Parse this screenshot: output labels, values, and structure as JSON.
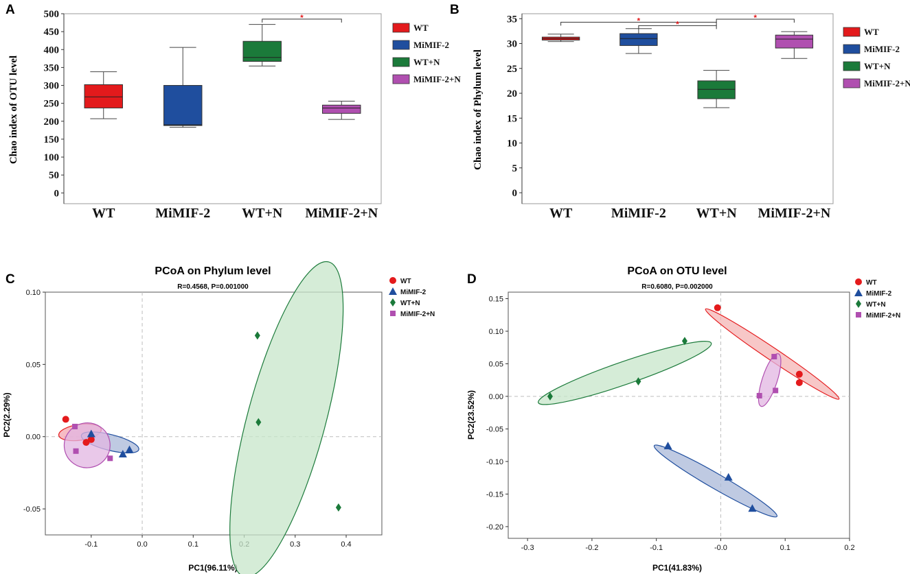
{
  "panels": {
    "A": {
      "label": "A",
      "chart_data": {
        "type": "box",
        "title": "",
        "xlabel": "",
        "ylabel": "Chao index of OTU level",
        "ylim": [
          -30,
          500
        ],
        "yticks": [
          0,
          50,
          100,
          150,
          200,
          250,
          300,
          350,
          400,
          450,
          500
        ],
        "categories": [
          "WT",
          "MiMIF-2",
          "WT+N",
          "MiMIF-2+N"
        ],
        "legend": [
          "WT",
          "MiMIF-2",
          "WT+N",
          "MiMIF-2+N"
        ],
        "colors": [
          "#e31a1c",
          "#1f4e9e",
          "#1b7a3a",
          "#b04fb0"
        ],
        "boxes": [
          {
            "min": 207,
            "q1": 237,
            "median": 268,
            "q3": 302,
            "max": 338
          },
          {
            "min": 183,
            "q1": 188,
            "median": 190,
            "q3": 300,
            "max": 406
          },
          {
            "min": 354,
            "q1": 367,
            "median": 378,
            "q3": 423,
            "max": 470
          },
          {
            "min": 205,
            "q1": 222,
            "median": 237,
            "q3": 245,
            "max": 256
          }
        ],
        "significance": [
          {
            "from": 2,
            "to": 3,
            "level": 485,
            "label": "*"
          }
        ]
      }
    },
    "B": {
      "label": "B",
      "chart_data": {
        "type": "box",
        "title": "",
        "xlabel": "",
        "ylabel": "Chao index of Phylum level",
        "ylim": [
          -2.2,
          36
        ],
        "yticks": [
          0,
          5,
          10,
          15,
          20,
          25,
          30,
          35
        ],
        "categories": [
          "WT",
          "MiMIF-2",
          "WT+N",
          "MiMIF-2+N"
        ],
        "legend": [
          "WT",
          "MiMIF-2",
          "WT+N",
          "MiMIF-2+N"
        ],
        "colors": [
          "#e31a1c",
          "#1f4e9e",
          "#1b7a3a",
          "#b04fb0"
        ],
        "boxes": [
          {
            "min": 30.4,
            "q1": 30.7,
            "median": 31.0,
            "q3": 31.3,
            "max": 31.9
          },
          {
            "min": 28.0,
            "q1": 29.6,
            "median": 31.0,
            "q3": 32.0,
            "max": 33.0
          },
          {
            "min": 17.1,
            "q1": 18.9,
            "median": 20.8,
            "q3": 22.5,
            "max": 24.6
          },
          {
            "min": 27.0,
            "q1": 29.1,
            "median": 30.9,
            "q3": 31.7,
            "max": 32.4
          }
        ],
        "significance": [
          {
            "from": 0,
            "to": 2,
            "level": 34.3,
            "label": "*"
          },
          {
            "from": 1,
            "to": 2,
            "level": 33.6,
            "label": "*"
          },
          {
            "from": 2,
            "to": 3,
            "level": 34.9,
            "label": "*"
          }
        ]
      }
    },
    "C": {
      "label": "C",
      "chart_data": {
        "type": "scatter",
        "title": "PCoA on Phylum level",
        "subtitle": "R=0.4568, P=0.001000",
        "xlabel": "PC1(96.11%)",
        "ylabel": "PC2(2.29%)",
        "xlim": [
          -0.19,
          0.47
        ],
        "ylim": [
          -0.068,
          0.1
        ],
        "xticks": [
          -0.1,
          0.0,
          0.1,
          0.2,
          0.3,
          0.4
        ],
        "xtick_labels": [
          "-0.1",
          "0.0",
          "0.1",
          "0.2",
          "0.3",
          "0.4"
        ],
        "yticks": [
          -0.05,
          0.0,
          0.05,
          0.1
        ],
        "ytick_labels": [
          "-0.05",
          "0.00",
          "0.05",
          "0.10"
        ],
        "legend": [
          "WT",
          "MiMIF-2",
          "WT+N",
          "MiMIF-2+N"
        ],
        "series": [
          {
            "name": "WT",
            "marker": "circle",
            "color": "#e41a1c",
            "points": [
              [
                -0.15,
                0.012
              ],
              [
                -0.11,
                -0.004
              ],
              [
                -0.1,
                -0.002
              ]
            ],
            "ellipse": {
              "center": [
                -0.122,
                0.003
              ],
              "rx": 0.042,
              "ry": 0.0055,
              "angle": -8,
              "fill": "#f4a6b0"
            }
          },
          {
            "name": "MiMIF-2",
            "marker": "triangle",
            "color": "#1f4e9e",
            "points": [
              [
                -0.1,
                0.002
              ],
              [
                -0.038,
                -0.012
              ],
              [
                -0.025,
                -0.009
              ]
            ],
            "ellipse": {
              "center": [
                -0.063,
                -0.004
              ],
              "rx": 0.058,
              "ry": 0.0055,
              "angle": 14,
              "fill": "#aab8d8"
            }
          },
          {
            "name": "WT+N",
            "marker": "diamond",
            "color": "#1b7a3a",
            "points": [
              [
                0.226,
                0.07
              ],
              [
                0.228,
                0.01
              ],
              [
                0.385,
                -0.049
              ]
            ],
            "ellipse": {
              "center": [
                0.283,
                0.012
              ],
              "rx": 0.32,
              "ry": 0.027,
              "angle": -75,
              "fill": "#c7e6c9"
            }
          },
          {
            "name": "MiMIF-2+N",
            "marker": "square",
            "color": "#b04fb0",
            "points": [
              [
                -0.132,
                0.007
              ],
              [
                -0.13,
                -0.01
              ],
              [
                -0.063,
                -0.015
              ]
            ],
            "ellipse": {
              "center": [
                -0.108,
                -0.006
              ],
              "rx": 0.045,
              "ry": 0.0155,
              "angle": -10,
              "fill": "#e2b6e2"
            }
          }
        ]
      }
    },
    "D": {
      "label": "D",
      "chart_data": {
        "type": "scatter",
        "title": "PCoA on OTU level",
        "subtitle": "R=0.6080, P=0.002000",
        "xlabel": "PC1(41.83%)",
        "ylabel": "PC2(23.52%)",
        "xlim": [
          -0.33,
          0.2
        ],
        "ylim": [
          -0.218,
          0.16
        ],
        "xticks": [
          -0.3,
          -0.2,
          -0.1,
          0.0,
          0.1,
          0.2
        ],
        "xtick_labels": [
          "-0.3",
          "-0.2",
          "-0.1",
          "-0.0",
          "0.1",
          "0.2"
        ],
        "yticks": [
          -0.2,
          -0.15,
          -0.1,
          -0.05,
          0.0,
          0.05,
          0.1,
          0.15
        ],
        "ytick_labels": [
          "-0.20",
          "-0.15",
          "-0.10",
          "-0.05",
          "0.00",
          "0.05",
          "0.10",
          "0.15"
        ],
        "legend": [
          "WT",
          "MiMIF-2",
          "WT+N",
          "MiMIF-2+N"
        ],
        "series": [
          {
            "name": "WT",
            "marker": "circle",
            "color": "#e41a1c",
            "points": [
              [
                -0.005,
                0.136
              ],
              [
                0.122,
                0.034
              ],
              [
                0.122,
                0.021
              ]
            ],
            "ellipse": {
              "center": [
                0.08,
                0.065
              ],
              "rx": 0.125,
              "ry": 0.0095,
              "angle": 34,
              "fill": "#f4b4b4"
            }
          },
          {
            "name": "MiMIF-2",
            "marker": "triangle",
            "color": "#1f4e9e",
            "points": [
              [
                -0.082,
                -0.076
              ],
              [
                0.012,
                -0.124
              ],
              [
                0.049,
                -0.172
              ]
            ],
            "ellipse": {
              "center": [
                -0.008,
                -0.13
              ],
              "rx": 0.11,
              "ry": 0.0115,
              "angle": 30,
              "fill": "#aab8d8"
            }
          },
          {
            "name": "WT+N",
            "marker": "diamond",
            "color": "#1b7a3a",
            "points": [
              [
                -0.265,
                0.0
              ],
              [
                -0.128,
                0.023
              ],
              [
                -0.056,
                0.085
              ]
            ],
            "ellipse": {
              "center": [
                -0.149,
                0.036
              ],
              "rx": 0.142,
              "ry": 0.0175,
              "angle": -19,
              "fill": "#c7e6c9"
            }
          },
          {
            "name": "MiMIF-2+N",
            "marker": "square",
            "color": "#b04fb0",
            "points": [
              [
                0.06,
                0.001
              ],
              [
                0.083,
                0.061
              ],
              [
                0.085,
                0.009
              ]
            ],
            "ellipse": {
              "center": [
                0.076,
                0.025
              ],
              "rx": 0.043,
              "ry": 0.0115,
              "angle": -72,
              "fill": "#e2b6e2"
            }
          }
        ]
      }
    }
  }
}
